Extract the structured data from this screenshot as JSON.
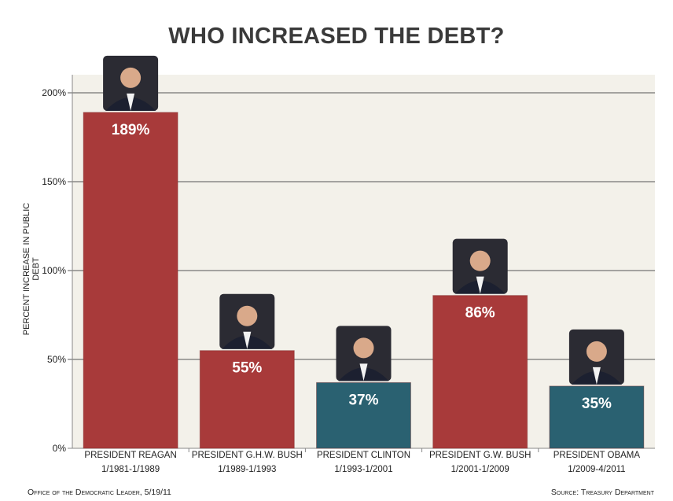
{
  "chart_data": {
    "type": "bar",
    "title": "WHO INCREASED THE DEBT?",
    "xlabel": "",
    "ylabel": "PERCENT INCREASE IN PUBLIC DEBT",
    "ylim": [
      0,
      200
    ],
    "yticks": [
      "0%",
      "50%",
      "100%",
      "150%",
      "200%"
    ],
    "ytick_values": [
      0,
      50,
      100,
      150,
      200
    ],
    "grid": true,
    "categories": [
      {
        "name": "PRESIDENT REAGAN",
        "term": "1/1981-1/1989"
      },
      {
        "name": "PRESIDENT G.H.W. BUSH",
        "term": "1/1989-1/1993"
      },
      {
        "name": "PRESIDENT CLINTON",
        "term": "1/1993-1/2001"
      },
      {
        "name": "PRESIDENT G.W. BUSH",
        "term": "1/2001-1/2009"
      },
      {
        "name": "PRESIDENT OBAMA",
        "term": "1/2009-4/2011"
      }
    ],
    "values": [
      189,
      55,
      37,
      86,
      35
    ],
    "data_labels": [
      "189%",
      "55%",
      "37%",
      "86%",
      "35%"
    ],
    "bar_colors": [
      "#a83a3a",
      "#a83a3a",
      "#2a6171",
      "#a83a3a",
      "#2a6171"
    ],
    "bar_images": [
      "portrait-photo",
      "portrait-photo",
      "portrait-photo",
      "portrait-photo",
      "portrait-photo"
    ]
  },
  "footer": {
    "left": "Office of the Democratic Leader, 5/19/11",
    "right": "Source: Treasury Department"
  }
}
